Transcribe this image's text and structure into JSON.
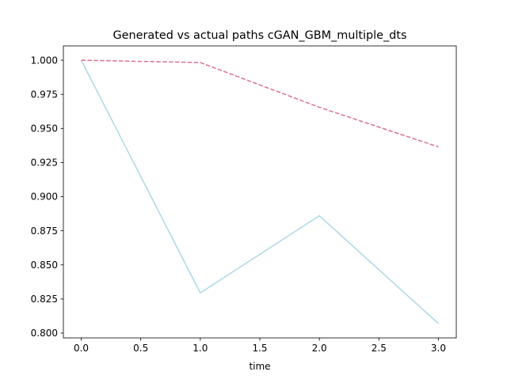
{
  "chart_data": {
    "type": "line",
    "title": "Generated vs actual paths cGAN_GBM_multiple_dts",
    "xlabel": "time",
    "ylabel": "",
    "xlim": [
      -0.15,
      3.15
    ],
    "ylim": [
      0.7965,
      1.0105
    ],
    "xticks": [
      0.0,
      0.5,
      1.0,
      1.5,
      2.0,
      2.5,
      3.0
    ],
    "xtick_labels": [
      "0.0",
      "0.5",
      "1.0",
      "1.5",
      "2.0",
      "2.5",
      "3.0"
    ],
    "yticks": [
      0.8,
      0.825,
      0.85,
      0.875,
      0.9,
      0.925,
      0.95,
      0.975,
      1.0
    ],
    "ytick_labels": [
      "0.800",
      "0.825",
      "0.850",
      "0.875",
      "0.900",
      "0.925",
      "0.950",
      "0.975",
      "1.000"
    ],
    "grid": false,
    "legend": "none",
    "series": [
      {
        "x": [
          0,
          1,
          2,
          3
        ],
        "values": [
          1.0,
          0.8295,
          0.886,
          0.807
        ],
        "color": "#add8e6",
        "style": "solid"
      },
      {
        "x": [
          0,
          1,
          2,
          3
        ],
        "values": [
          1.0,
          0.9983,
          0.9655,
          0.9365
        ],
        "color": "#db7093",
        "style": "dashed"
      }
    ]
  }
}
